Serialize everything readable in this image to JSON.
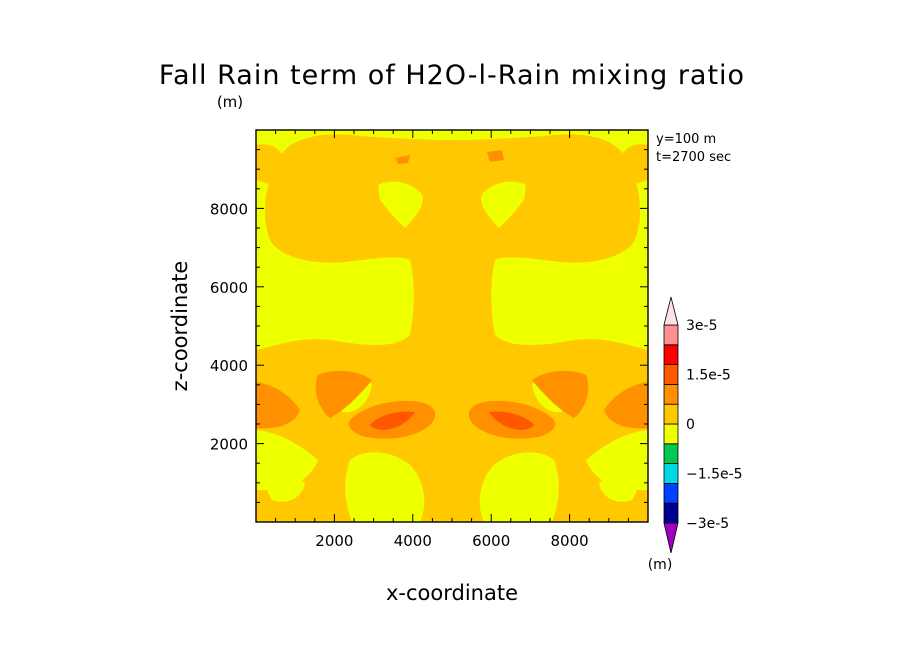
{
  "chart_data": {
    "type": "heatmap",
    "title": "Fall Rain term of H2O-l-Rain mixing ratio",
    "title_unit": "(m)",
    "xlabel": "x-coordinate",
    "ylabel": "z-coordinate",
    "xlim": [
      0,
      10000
    ],
    "ylim": [
      0,
      10000
    ],
    "x_ticks": [
      2000,
      4000,
      6000,
      8000
    ],
    "y_ticks": [
      2000,
      4000,
      6000,
      8000
    ],
    "x_tick_labels": [
      "2000",
      "4000",
      "6000",
      "8000"
    ],
    "y_tick_labels": [
      "2000",
      "4000",
      "6000",
      "8000"
    ],
    "annotations": [
      "y=100 m",
      "t=2700 sec"
    ],
    "colorbar": {
      "unit": "(m)",
      "levels": [
        -3e-05,
        -2.25e-05,
        -1.5e-05,
        -7.5e-06,
        0,
        7.5e-06,
        1.5e-05,
        2.25e-05,
        3e-05
      ],
      "labels": [
        {
          "text": "3e-5",
          "value": 3e-05
        },
        {
          "text": "1.5e-5",
          "value": 1.5e-05
        },
        {
          "text": "0",
          "value": 0
        },
        {
          "text": "−1.5e-5",
          "value": -1.5e-05
        },
        {
          "text": "−3e-5",
          "value": -3e-05
        }
      ],
      "colors_bottom_to_top": [
        "#a000c0",
        "#000090",
        "#0040ff",
        "#00d8e8",
        "#00c850",
        "#eeff00",
        "#ffc800",
        "#ff9000",
        "#ff5800",
        "#ff0000",
        "#ff9090",
        "#ffe0e8"
      ]
    },
    "fields": {
      "background": "#eeff00",
      "level_0_to_7_5e-6": "#ffc800",
      "level_7_5e-6_to_1_5e-5": "#ff9000",
      "level_1_5e-5_to_2_25e-5": "#ff5800"
    }
  }
}
